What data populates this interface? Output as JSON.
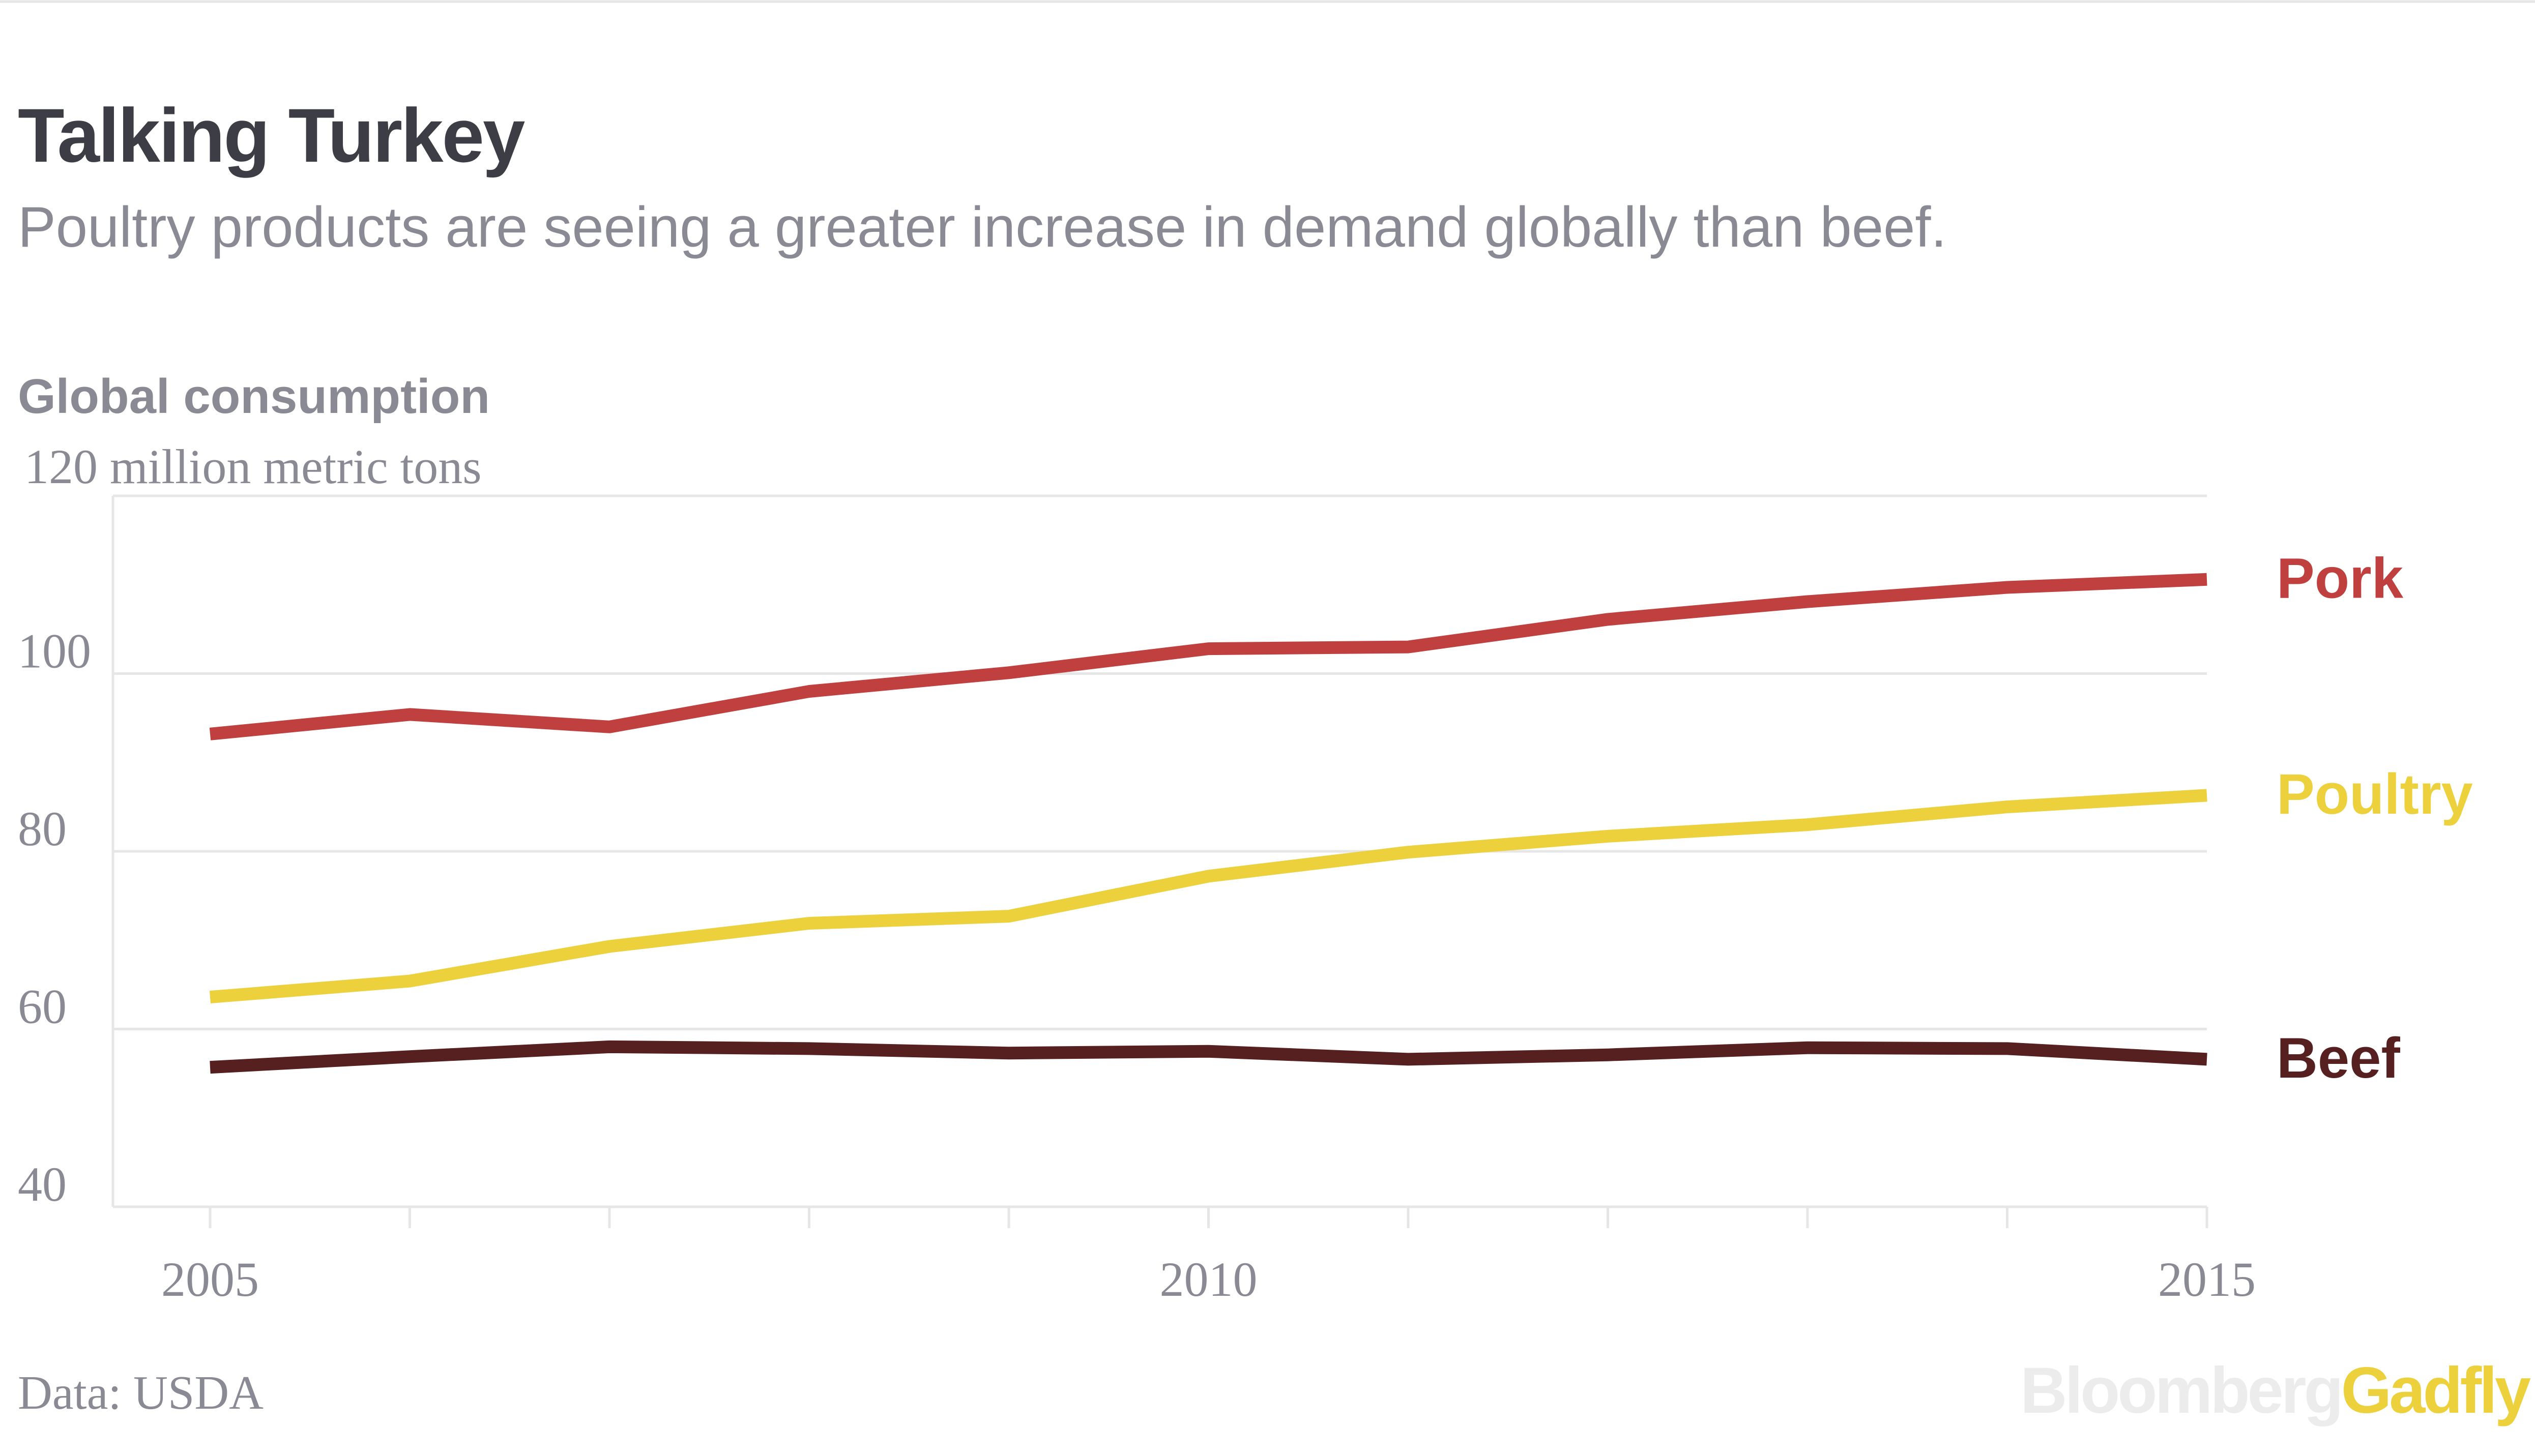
{
  "header": {
    "title": "Talking Turkey",
    "subtitle": "Poultry products are seeing a greater increase in demand globally than beef."
  },
  "footer": {
    "source": "Data: USDA",
    "brand_part1": "Bloomberg",
    "brand_part2": "Gadfly"
  },
  "colors": {
    "pork": "#c0403f",
    "poultry": "#ecd03c",
    "beef": "#55201f",
    "grid": "#e6e6e6",
    "axis_text": "#8a8a94",
    "title": "#3d3d46",
    "subtitle": "#8a8a94",
    "brand_gray": "#ececec",
    "brand_yellow": "#ecd03c"
  },
  "chart_data": {
    "type": "line",
    "title": "Global consumption",
    "ylabel": "120 million metric tons",
    "x": [
      2005,
      2006,
      2007,
      2008,
      2009,
      2010,
      2011,
      2012,
      2013,
      2014,
      2015
    ],
    "xlim": [
      2005,
      2015
    ],
    "ylim": [
      40,
      120
    ],
    "x_ticks": [
      2005,
      2006,
      2007,
      2008,
      2009,
      2010,
      2011,
      2012,
      2013,
      2014,
      2015
    ],
    "x_tick_labels": [
      "2005",
      "",
      "",
      "",
      "",
      "2010",
      "",
      "",
      "",
      "",
      "2015"
    ],
    "y_ticks": [
      40,
      60,
      80,
      100,
      120
    ],
    "y_tick_labels": [
      "40",
      "60",
      "80",
      "100",
      ""
    ],
    "grid": true,
    "series": [
      {
        "name": "Pork",
        "color_key": "pork",
        "values": [
          93.2,
          95.4,
          94.0,
          98.0,
          100.1,
          102.8,
          103.0,
          106.1,
          108.1,
          109.7,
          110.6
        ]
      },
      {
        "name": "Poultry",
        "color_key": "poultry",
        "values": [
          63.6,
          65.4,
          69.3,
          71.9,
          72.7,
          77.2,
          79.9,
          81.7,
          83.0,
          85.0,
          86.3
        ]
      },
      {
        "name": "Beef",
        "color_key": "beef",
        "values": [
          55.7,
          56.9,
          58.0,
          57.8,
          57.3,
          57.5,
          56.6,
          57.1,
          57.9,
          57.8,
          56.6
        ]
      }
    ]
  }
}
